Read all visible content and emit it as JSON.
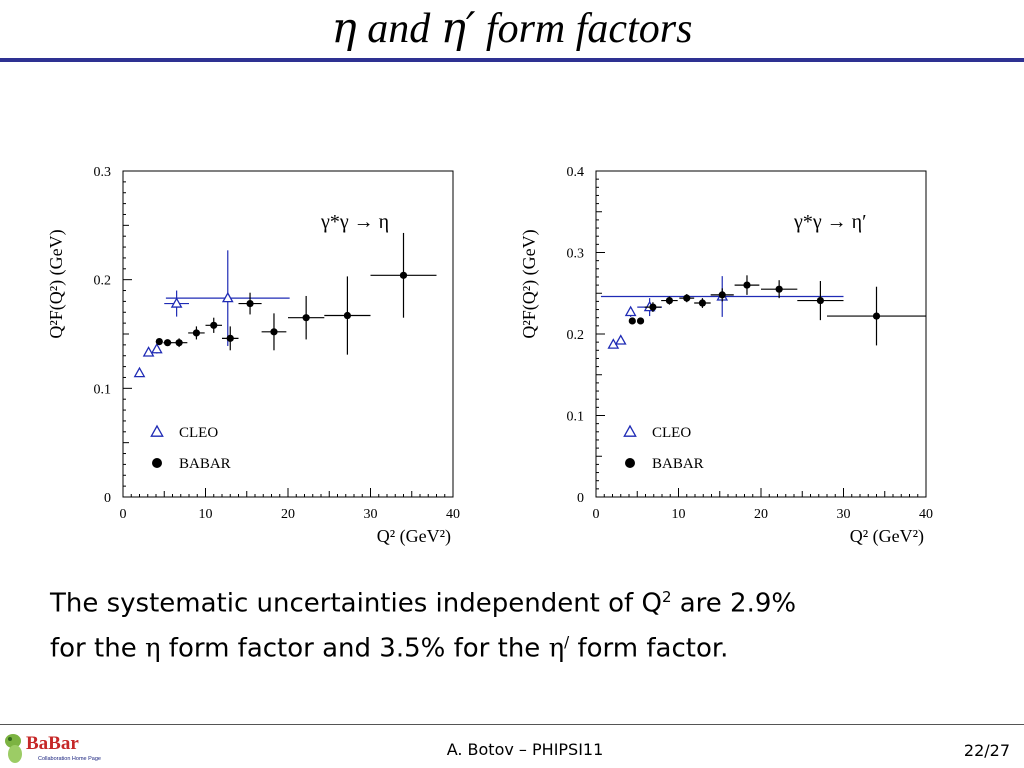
{
  "slide": {
    "title": {
      "eta": "η",
      "and": "and",
      "eta_prime": "η′",
      "rest": "form factors"
    },
    "summary": {
      "line1_text": "The systematic uncertainties independent of Q",
      "line1_sup": "2",
      "line1_end": " are 2.9%",
      "line2_a": "for the ",
      "line2_eta": "η",
      "line2_b": " form factor  and 3.5% for the ",
      "line2_eta_prime": "η",
      "line2_prime_sup": "/",
      "line2_c": " form factor."
    },
    "footer": {
      "author": "A. Botov – PHIPSI11",
      "page": "22/27",
      "logo_text": "BaBar",
      "logo_subtext": "Collaboration Home Page"
    }
  },
  "chart_data": [
    {
      "type": "scatter",
      "process": "γ*γ → η",
      "xlabel": "Q² (GeV²)",
      "ylabel": "Q²F(Q²) (GeV)",
      "xlim": [
        0,
        40
      ],
      "ylim": [
        0,
        0.3
      ],
      "xticks": [
        0,
        10,
        20,
        30,
        40
      ],
      "yticks": [
        0,
        0.1,
        0.2,
        0.3
      ],
      "ytick_labels": [
        "0",
        "0.1",
        "0.2",
        "0.3"
      ],
      "legend_position": "bottom-left",
      "series": [
        {
          "name": "CLEO",
          "marker": "open-triangle",
          "color": "#1f2bb5",
          "points": [
            {
              "x": 2.0,
              "y": 0.114,
              "xerr": 0.0,
              "yerr": 0.0
            },
            {
              "x": 3.1,
              "y": 0.133,
              "xerr": 0.0,
              "yerr": 0.0
            },
            {
              "x": 4.1,
              "y": 0.136,
              "xerr": 0.0,
              "yerr": 0.004
            },
            {
              "x": 6.5,
              "y": 0.178,
              "xerr": 1.5,
              "yerr": 0.012
            },
            {
              "x": 12.7,
              "y": 0.183,
              "xerr": 7.5,
              "yerr": 0.044
            }
          ]
        },
        {
          "name": "BABAR",
          "marker": "filled-circle",
          "color": "#000000",
          "points": [
            {
              "x": 4.4,
              "y": 0.143,
              "xerr": 0.0,
              "yerr": 0.0
            },
            {
              "x": 5.4,
              "y": 0.142,
              "xerr": 0.5,
              "yerr": 0.0
            },
            {
              "x": 6.8,
              "y": 0.142,
              "xerr": 1.0,
              "yerr": 0.004
            },
            {
              "x": 8.9,
              "y": 0.151,
              "xerr": 1.0,
              "yerr": 0.006
            },
            {
              "x": 11.0,
              "y": 0.158,
              "xerr": 1.0,
              "yerr": 0.007
            },
            {
              "x": 13.0,
              "y": 0.146,
              "xerr": 1.0,
              "yerr": 0.011
            },
            {
              "x": 15.4,
              "y": 0.178,
              "xerr": 1.4,
              "yerr": 0.01
            },
            {
              "x": 18.3,
              "y": 0.152,
              "xerr": 1.5,
              "yerr": 0.017
            },
            {
              "x": 22.2,
              "y": 0.165,
              "xerr": 2.2,
              "yerr": 0.02
            },
            {
              "x": 27.2,
              "y": 0.167,
              "xerr": 2.8,
              "yerr": 0.036
            },
            {
              "x": 34.0,
              "y": 0.204,
              "xerr": 4.0,
              "yerr": 0.039
            }
          ]
        }
      ]
    },
    {
      "type": "scatter",
      "process": "γ*γ → η′",
      "xlabel": "Q² (GeV²)",
      "ylabel": "Q²F(Q²) (GeV)",
      "xlim": [
        0,
        40
      ],
      "ylim": [
        0,
        0.4
      ],
      "xticks": [
        0,
        10,
        20,
        30,
        40
      ],
      "yticks": [
        0,
        0.1,
        0.2,
        0.3,
        0.4
      ],
      "ytick_labels": [
        "0",
        "0.1",
        "0.2",
        "0.3",
        "0.4"
      ],
      "legend_position": "bottom-left",
      "series": [
        {
          "name": "CLEO",
          "marker": "open-triangle",
          "color": "#1f2bb5",
          "points": [
            {
              "x": 2.1,
              "y": 0.187,
              "xerr": 0.0,
              "yerr": 0.0
            },
            {
              "x": 3.0,
              "y": 0.192,
              "xerr": 0.0,
              "yerr": 0.0
            },
            {
              "x": 4.2,
              "y": 0.227,
              "xerr": 0.0,
              "yerr": 0.006
            },
            {
              "x": 6.5,
              "y": 0.233,
              "xerr": 1.5,
              "yerr": 0.011
            },
            {
              "x": 15.3,
              "y": 0.246,
              "xerr": 14.7,
              "yerr": 0.025
            }
          ]
        },
        {
          "name": "BABAR",
          "marker": "filled-circle",
          "color": "#000000",
          "points": [
            {
              "x": 4.4,
              "y": 0.216,
              "xerr": 0.0,
              "yerr": 0.0
            },
            {
              "x": 5.4,
              "y": 0.216,
              "xerr": 0.0,
              "yerr": 0.0
            },
            {
              "x": 6.9,
              "y": 0.233,
              "xerr": 1.0,
              "yerr": 0.006
            },
            {
              "x": 8.9,
              "y": 0.241,
              "xerr": 1.0,
              "yerr": 0.005
            },
            {
              "x": 11.0,
              "y": 0.244,
              "xerr": 0.9,
              "yerr": 0.005
            },
            {
              "x": 12.9,
              "y": 0.238,
              "xerr": 1.0,
              "yerr": 0.006
            },
            {
              "x": 15.3,
              "y": 0.248,
              "xerr": 1.4,
              "yerr": 0.008
            },
            {
              "x": 18.3,
              "y": 0.26,
              "xerr": 1.5,
              "yerr": 0.012
            },
            {
              "x": 22.2,
              "y": 0.255,
              "xerr": 2.2,
              "yerr": 0.011
            },
            {
              "x": 27.2,
              "y": 0.241,
              "xerr": 2.8,
              "yerr": 0.024
            },
            {
              "x": 34.0,
              "y": 0.222,
              "xerr": 6.0,
              "yerr": 0.036
            }
          ]
        }
      ]
    }
  ]
}
